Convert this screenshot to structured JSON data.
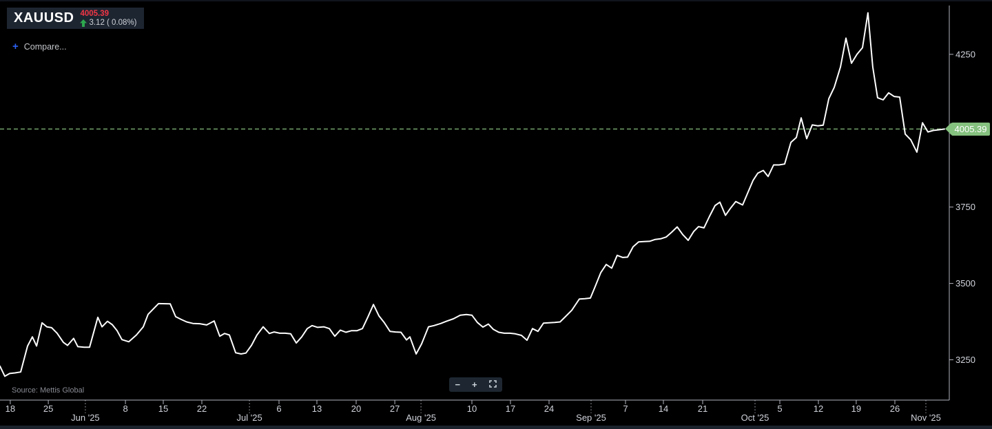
{
  "ticker": {
    "symbol": "XAUUSD",
    "price": "4005.39",
    "change_text": "3.12 ( 0.08%)",
    "direction": "up",
    "arrow_icon": "up-arrow"
  },
  "compare": {
    "label": "Compare...",
    "icon_glyph": "+"
  },
  "source": "Source: Mettis Global",
  "toolbar": {
    "zoom_out": "−",
    "zoom_in": "+",
    "fullscreen_icon": "expand"
  },
  "colors": {
    "background": "#000000",
    "line": "#ffffff",
    "axis": "#b2b5be",
    "label": "#d1d4dc",
    "dashed": "#74a46c",
    "tag_bg": "#85c17f",
    "tag_text": "#ffffff",
    "price_red": "#f23645",
    "change_green": "#2da84e",
    "compare_blue": "#2d62f5",
    "legend_bg": "#1d2531",
    "toolbar_bg": "#1e2731",
    "muted": "#888b94"
  },
  "chart_data": {
    "type": "line",
    "title": "XAUUSD gold price, mid-May 2025 to early Nov 2025",
    "ylim": [
      3118,
      4428
    ],
    "y_ticks": [
      4250,
      3750,
      3500,
      3250
    ],
    "last_price": 4005.39,
    "x_range": [
      "May 16 '25",
      "Nov 4 '25"
    ],
    "legend_position": "none",
    "grid": false,
    "x_ticks": [
      {
        "f": 0.0109,
        "label": "18"
      },
      {
        "f": 0.0511,
        "label": "25"
      },
      {
        "f": 0.0904,
        "label": "Jun '25",
        "month": true
      },
      {
        "f": 0.1328,
        "label": "8"
      },
      {
        "f": 0.1729,
        "label": "15"
      },
      {
        "f": 0.2137,
        "label": "22"
      },
      {
        "f": 0.2641,
        "label": "Jul '25",
        "month": true
      },
      {
        "f": 0.2954,
        "label": "6"
      },
      {
        "f": 0.3355,
        "label": "13"
      },
      {
        "f": 0.3771,
        "label": "20"
      },
      {
        "f": 0.418,
        "label": "27"
      },
      {
        "f": 0.4457,
        "label": "Aug '25",
        "month": true
      },
      {
        "f": 0.4996,
        "label": "10"
      },
      {
        "f": 0.5405,
        "label": "17"
      },
      {
        "f": 0.5813,
        "label": "24"
      },
      {
        "f": 0.6258,
        "label": "Sep '25",
        "month": true
      },
      {
        "f": 0.6623,
        "label": "7"
      },
      {
        "f": 0.7024,
        "label": "14"
      },
      {
        "f": 0.744,
        "label": "21"
      },
      {
        "f": 0.7994,
        "label": "Oct '25",
        "month": true
      },
      {
        "f": 0.8257,
        "label": "5"
      },
      {
        "f": 0.8665,
        "label": "12"
      },
      {
        "f": 0.9066,
        "label": "19"
      },
      {
        "f": 0.9475,
        "label": "26"
      },
      {
        "f": 0.9803,
        "label": "Nov '25",
        "month": true
      }
    ],
    "points": [
      [
        0.0,
        3229
      ],
      [
        0.0051,
        3196
      ],
      [
        0.0102,
        3205
      ],
      [
        0.016,
        3207
      ],
      [
        0.0219,
        3210
      ],
      [
        0.0292,
        3295
      ],
      [
        0.0343,
        3325
      ],
      [
        0.0387,
        3295
      ],
      [
        0.0445,
        3371
      ],
      [
        0.0496,
        3358
      ],
      [
        0.0547,
        3355
      ],
      [
        0.0605,
        3337
      ],
      [
        0.0671,
        3307
      ],
      [
        0.0715,
        3297
      ],
      [
        0.078,
        3320
      ],
      [
        0.0824,
        3293
      ],
      [
        0.089,
        3291
      ],
      [
        0.0948,
        3291
      ],
      [
        0.1036,
        3389
      ],
      [
        0.108,
        3358
      ],
      [
        0.1138,
        3376
      ],
      [
        0.1189,
        3365
      ],
      [
        0.124,
        3345
      ],
      [
        0.1291,
        3316
      ],
      [
        0.1364,
        3309
      ],
      [
        0.1444,
        3331
      ],
      [
        0.1517,
        3358
      ],
      [
        0.1568,
        3399
      ],
      [
        0.1678,
        3434
      ],
      [
        0.1802,
        3433
      ],
      [
        0.186,
        3391
      ],
      [
        0.1918,
        3382
      ],
      [
        0.1977,
        3374
      ],
      [
        0.2042,
        3369
      ],
      [
        0.2115,
        3368
      ],
      [
        0.2188,
        3364
      ],
      [
        0.2268,
        3377
      ],
      [
        0.2327,
        3327
      ],
      [
        0.2378,
        3336
      ],
      [
        0.2429,
        3331
      ],
      [
        0.2495,
        3273
      ],
      [
        0.2553,
        3269
      ],
      [
        0.2604,
        3272
      ],
      [
        0.2662,
        3297
      ],
      [
        0.2721,
        3331
      ],
      [
        0.2786,
        3358
      ],
      [
        0.2852,
        3336
      ],
      [
        0.2903,
        3341
      ],
      [
        0.2962,
        3337
      ],
      [
        0.302,
        3337
      ],
      [
        0.3078,
        3335
      ],
      [
        0.3137,
        3305
      ],
      [
        0.3195,
        3325
      ],
      [
        0.3253,
        3352
      ],
      [
        0.3304,
        3362
      ],
      [
        0.3363,
        3356
      ],
      [
        0.3428,
        3358
      ],
      [
        0.3487,
        3352
      ],
      [
        0.3545,
        3327
      ],
      [
        0.3603,
        3347
      ],
      [
        0.3662,
        3340
      ],
      [
        0.372,
        3345
      ],
      [
        0.3778,
        3345
      ],
      [
        0.3837,
        3352
      ],
      [
        0.3895,
        3390
      ],
      [
        0.3954,
        3431
      ],
      [
        0.4012,
        3394
      ],
      [
        0.407,
        3371
      ],
      [
        0.4129,
        3343
      ],
      [
        0.4187,
        3341
      ],
      [
        0.4245,
        3340
      ],
      [
        0.4304,
        3315
      ],
      [
        0.434,
        3325
      ],
      [
        0.4406,
        3269
      ],
      [
        0.4464,
        3302
      ],
      [
        0.4537,
        3358
      ],
      [
        0.4595,
        3362
      ],
      [
        0.4668,
        3369
      ],
      [
        0.4726,
        3376
      ],
      [
        0.48,
        3384
      ],
      [
        0.4873,
        3396
      ],
      [
        0.4938,
        3398
      ],
      [
        0.4996,
        3396
      ],
      [
        0.5055,
        3372
      ],
      [
        0.5113,
        3357
      ],
      [
        0.5171,
        3367
      ],
      [
        0.5222,
        3350
      ],
      [
        0.5281,
        3340
      ],
      [
        0.5339,
        3337
      ],
      [
        0.5398,
        3337
      ],
      [
        0.5456,
        3335
      ],
      [
        0.5521,
        3330
      ],
      [
        0.558,
        3314
      ],
      [
        0.5638,
        3352
      ],
      [
        0.5696,
        3343
      ],
      [
        0.5755,
        3370
      ],
      [
        0.5813,
        3371
      ],
      [
        0.5872,
        3372
      ],
      [
        0.593,
        3374
      ],
      [
        0.5989,
        3392
      ],
      [
        0.6054,
        3412
      ],
      [
        0.6134,
        3449
      ],
      [
        0.6193,
        3450
      ],
      [
        0.6251,
        3452
      ],
      [
        0.6302,
        3490
      ],
      [
        0.636,
        3535
      ],
      [
        0.6419,
        3562
      ],
      [
        0.6477,
        3550
      ],
      [
        0.6535,
        3592
      ],
      [
        0.6594,
        3585
      ],
      [
        0.6645,
        3586
      ],
      [
        0.6703,
        3620
      ],
      [
        0.6762,
        3636
      ],
      [
        0.682,
        3637
      ],
      [
        0.6878,
        3638
      ],
      [
        0.6937,
        3644
      ],
      [
        0.6995,
        3646
      ],
      [
        0.7053,
        3652
      ],
      [
        0.7112,
        3668
      ],
      [
        0.717,
        3685
      ],
      [
        0.7228,
        3660
      ],
      [
        0.7287,
        3641
      ],
      [
        0.7345,
        3670
      ],
      [
        0.7396,
        3686
      ],
      [
        0.7454,
        3682
      ],
      [
        0.7513,
        3720
      ],
      [
        0.7571,
        3755
      ],
      [
        0.7622,
        3766
      ],
      [
        0.7681,
        3723
      ],
      [
        0.7739,
        3748
      ],
      [
        0.779,
        3768
      ],
      [
        0.7863,
        3757
      ],
      [
        0.7922,
        3800
      ],
      [
        0.7973,
        3837
      ],
      [
        0.8023,
        3861
      ],
      [
        0.8082,
        3870
      ],
      [
        0.8133,
        3850
      ],
      [
        0.8191,
        3888
      ],
      [
        0.8249,
        3888
      ],
      [
        0.8308,
        3891
      ],
      [
        0.8374,
        3962
      ],
      [
        0.8432,
        3978
      ],
      [
        0.8483,
        4042
      ],
      [
        0.8541,
        3974
      ],
      [
        0.86,
        4019
      ],
      [
        0.8658,
        4016
      ],
      [
        0.8716,
        4018
      ],
      [
        0.8775,
        4105
      ],
      [
        0.8833,
        4142
      ],
      [
        0.8899,
        4209
      ],
      [
        0.8957,
        4303
      ],
      [
        0.9015,
        4221
      ],
      [
        0.9074,
        4250
      ],
      [
        0.9132,
        4272
      ],
      [
        0.919,
        4386
      ],
      [
        0.9241,
        4209
      ],
      [
        0.9292,
        4108
      ],
      [
        0.9351,
        4101
      ],
      [
        0.9409,
        4124
      ],
      [
        0.9467,
        4112
      ],
      [
        0.9526,
        4110
      ],
      [
        0.9584,
        3989
      ],
      [
        0.9643,
        3970
      ],
      [
        0.9708,
        3930
      ],
      [
        0.9767,
        4026
      ],
      [
        0.9825,
        3996
      ],
      [
        0.9883,
        4001
      ],
      [
        0.9942,
        4003
      ],
      [
        1.0,
        4005.39
      ]
    ]
  }
}
